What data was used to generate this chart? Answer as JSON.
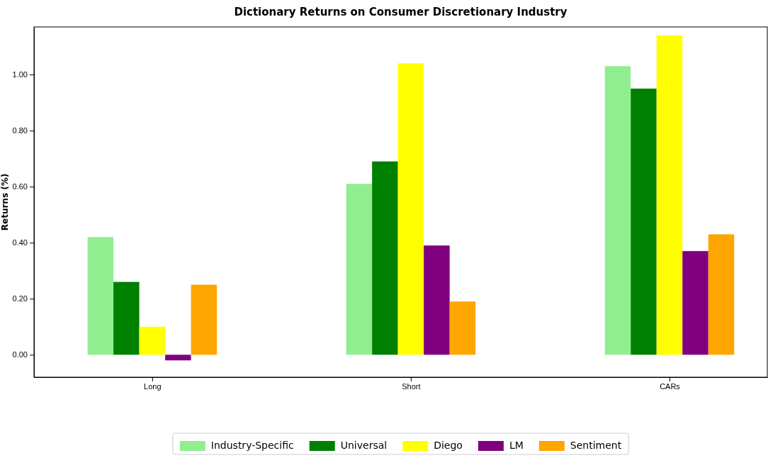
{
  "chart_data": {
    "type": "bar",
    "title": "Dictionary Returns on Consumer Discretionary Industry",
    "ylabel": "Returns (%)",
    "categories": [
      "Long",
      "Short",
      "CARs"
    ],
    "series": [
      {
        "name": "Industry-Specific",
        "color": "#90ee90",
        "values": [
          0.42,
          0.61,
          1.03
        ]
      },
      {
        "name": "Universal",
        "color": "#008000",
        "values": [
          0.26,
          0.69,
          0.95
        ]
      },
      {
        "name": "Diego",
        "color": "#ffff00",
        "values": [
          0.1,
          1.04,
          1.14
        ]
      },
      {
        "name": "LM",
        "color": "#800080",
        "values": [
          -0.02,
          0.39,
          0.37
        ]
      },
      {
        "name": "Sentiment",
        "color": "#ffa500",
        "values": [
          0.25,
          0.19,
          0.43
        ]
      }
    ],
    "ylim": [
      -0.08,
      1.17
    ],
    "yticks": [
      {
        "value": 0,
        "label": "0.00"
      },
      {
        "value": 0.2,
        "label": "0.20"
      },
      {
        "value": 0.4,
        "label": "0.40"
      },
      {
        "value": 0.6,
        "label": "0.60"
      },
      {
        "value": 0.8,
        "label": "0.80"
      },
      {
        "value": 1,
        "label": "1.00"
      }
    ],
    "grid": false,
    "legend": "bottom"
  }
}
